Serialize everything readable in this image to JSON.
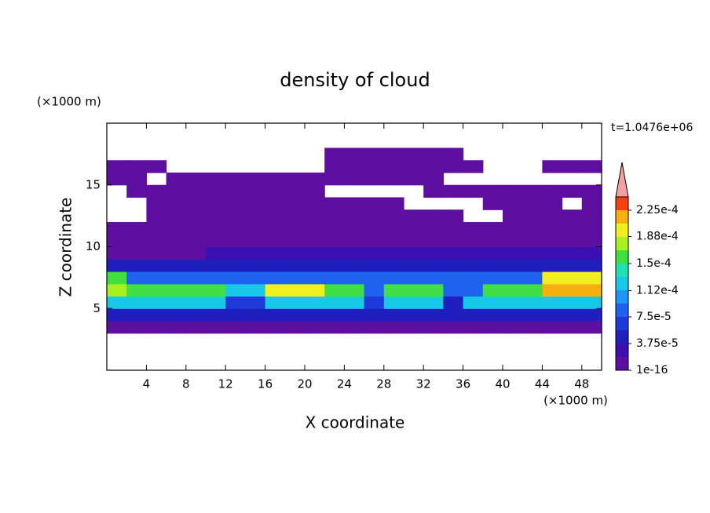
{
  "chart_data": {
    "type": "contour",
    "title": "density of cloud",
    "xlabel": "X coordinate",
    "ylabel": "Z coordinate",
    "x_unit": "(×1000 m)",
    "y_unit": "(×1000 m)",
    "time_label": "t=1.0476e+06",
    "xlim": [
      0,
      50
    ],
    "ylim": [
      0,
      20
    ],
    "xticks": [
      4,
      8,
      12,
      16,
      20,
      24,
      28,
      32,
      36,
      40,
      44,
      48
    ],
    "yticks": [
      5,
      10,
      15
    ],
    "x_edges": [
      0,
      2,
      4,
      6,
      8,
      10,
      12,
      14,
      16,
      18,
      20,
      22,
      24,
      26,
      28,
      30,
      32,
      34,
      36,
      38,
      40,
      42,
      44,
      46,
      48,
      50
    ],
    "y_edges": [
      3,
      4,
      5,
      6,
      7,
      8,
      9,
      10,
      11,
      12,
      13,
      14,
      15,
      16,
      17,
      18
    ],
    "z": [
      [
        1.5e-05,
        1.5e-05,
        1.5e-05,
        1.5e-05,
        1.5e-05,
        1.5e-05,
        1.5e-05,
        1.5e-05,
        1.5e-05,
        1.5e-05,
        1.5e-05,
        1.5e-05,
        1.5e-05,
        1.5e-05,
        1.5e-05,
        1.5e-05,
        1.5e-05,
        1.5e-05,
        1.5e-05,
        1.5e-05,
        1.5e-05,
        1.5e-05,
        1.5e-05,
        1.5e-05,
        1.5e-05
      ],
      [
        5e-05,
        5e-05,
        5e-05,
        5e-05,
        5e-05,
        5e-05,
        5e-05,
        5e-05,
        5e-05,
        5e-05,
        5e-05,
        5e-05,
        5e-05,
        5e-05,
        5e-05,
        5e-05,
        5e-05,
        5e-05,
        5e-05,
        5e-05,
        5e-05,
        5e-05,
        5e-05,
        5e-05,
        5e-05
      ],
      [
        0.00012,
        0.00012,
        0.00012,
        0.00012,
        0.00012,
        0.00012,
        6e-05,
        6e-05,
        0.00012,
        0.00012,
        0.00012,
        0.00012,
        0.00012,
        6e-05,
        0.00012,
        0.00012,
        0.00012,
        5e-05,
        0.00012,
        0.00012,
        0.00012,
        0.00012,
        0.00012,
        0.00012,
        0.00012
      ],
      [
        0.00018,
        0.00015,
        0.00015,
        0.00015,
        0.00015,
        0.00015,
        0.00013,
        0.00013,
        0.0002,
        0.0002,
        0.0002,
        0.00016,
        0.00016,
        9e-05,
        0.00016,
        0.00016,
        0.00016,
        9e-05,
        9e-05,
        0.00016,
        0.00016,
        0.00016,
        0.00022,
        0.00022,
        0.00022
      ],
      [
        0.00015,
        9e-05,
        9e-05,
        9e-05,
        9e-05,
        9e-05,
        9e-05,
        9e-05,
        9e-05,
        9e-05,
        9e-05,
        9e-05,
        9e-05,
        9e-05,
        9e-05,
        9e-05,
        9e-05,
        9e-05,
        9e-05,
        9e-05,
        9e-05,
        9e-05,
        0.00019,
        0.00019,
        0.00019
      ],
      [
        4e-05,
        4e-05,
        4e-05,
        4e-05,
        4e-05,
        4e-05,
        4e-05,
        4e-05,
        4e-05,
        4e-05,
        4e-05,
        4e-05,
        4e-05,
        4e-05,
        4e-05,
        4e-05,
        4e-05,
        4e-05,
        4e-05,
        4e-05,
        4e-05,
        4e-05,
        4e-05,
        4e-05,
        4e-05
      ],
      [
        1.5e-05,
        1.5e-05,
        1.5e-05,
        1.5e-05,
        1.5e-05,
        2.5e-05,
        2.5e-05,
        2.5e-05,
        2.5e-05,
        2.5e-05,
        2.5e-05,
        2.5e-05,
        2.5e-05,
        2.5e-05,
        2.5e-05,
        2.5e-05,
        2.5e-05,
        2.5e-05,
        2.5e-05,
        2.5e-05,
        2.5e-05,
        2.5e-05,
        2.5e-05,
        2.5e-05,
        2.5e-05
      ],
      [
        1.5e-05,
        1.5e-05,
        1.5e-05,
        1.5e-05,
        1.5e-05,
        1.5e-05,
        1.5e-05,
        1.5e-05,
        1.5e-05,
        1.5e-05,
        1.5e-05,
        1.5e-05,
        1.5e-05,
        1.5e-05,
        1.5e-05,
        1.5e-05,
        1.5e-05,
        1.5e-05,
        1.5e-05,
        1.5e-05,
        1.5e-05,
        1.5e-05,
        1.5e-05,
        1.5e-05,
        1.5e-05
      ],
      [
        1e-05,
        1e-05,
        1e-05,
        1e-05,
        1e-05,
        1e-05,
        1e-05,
        1e-05,
        1.5e-05,
        1.5e-05,
        1.5e-05,
        1.5e-05,
        1.5e-05,
        1.5e-05,
        1.5e-05,
        1e-05,
        1e-05,
        1e-05,
        1e-05,
        1e-05,
        1e-05,
        1e-05,
        1e-05,
        1e-05,
        1e-05
      ],
      [
        null,
        null,
        1e-05,
        1e-05,
        1e-05,
        1e-05,
        1e-05,
        1e-05,
        1e-05,
        1e-05,
        1e-05,
        1e-05,
        1e-05,
        1e-05,
        1e-05,
        1e-05,
        1e-05,
        1e-05,
        null,
        null,
        1e-05,
        1e-05,
        1e-05,
        1e-05,
        1e-05
      ],
      [
        null,
        null,
        5e-06,
        5e-06,
        5e-06,
        5e-06,
        5e-06,
        5e-06,
        5e-06,
        5e-06,
        5e-06,
        5e-06,
        5e-06,
        5e-06,
        5e-06,
        null,
        null,
        null,
        null,
        5e-06,
        5e-06,
        5e-06,
        5e-06,
        null,
        5e-06
      ],
      [
        null,
        5e-06,
        5e-06,
        5e-06,
        5e-06,
        5e-06,
        5e-06,
        5e-06,
        5e-06,
        5e-06,
        5e-06,
        null,
        null,
        null,
        null,
        null,
        5e-06,
        5e-06,
        5e-06,
        5e-06,
        5e-06,
        5e-06,
        5e-06,
        5e-06,
        5e-06
      ],
      [
        5e-06,
        5e-06,
        null,
        5e-06,
        5e-06,
        5e-06,
        5e-06,
        5e-06,
        5e-06,
        5e-06,
        5e-06,
        5e-06,
        5e-06,
        5e-06,
        5e-06,
        5e-06,
        5e-06,
        null,
        null,
        null,
        null,
        null,
        null,
        null,
        null
      ],
      [
        5e-06,
        5e-06,
        5e-06,
        null,
        null,
        null,
        null,
        null,
        null,
        null,
        null,
        5e-06,
        5e-06,
        5e-06,
        5e-06,
        5e-06,
        5e-06,
        5e-06,
        5e-06,
        null,
        null,
        null,
        5e-06,
        5e-06,
        5e-06
      ],
      [
        null,
        null,
        null,
        null,
        null,
        null,
        null,
        null,
        null,
        null,
        null,
        5e-06,
        5e-06,
        5e-06,
        5e-06,
        5e-06,
        5e-06,
        5e-06,
        null,
        null,
        null,
        null,
        null,
        null,
        null
      ]
    ],
    "levels": [
      1e-16,
      1.875e-05,
      3.75e-05,
      5.625e-05,
      7.5e-05,
      9.375e-05,
      0.0001125,
      0.00013125,
      0.00015,
      0.00016875,
      0.0001875,
      0.00020625,
      0.000225
    ],
    "colors": [
      "#5e0fa0",
      "#3b0fb0",
      "#1f1fbe",
      "#1f3ad8",
      "#1f62f0",
      "#1f96f5",
      "#18c8e8",
      "#20e0b0",
      "#40e040",
      "#a8f020",
      "#f0f020",
      "#f8b010",
      "#f84010"
    ],
    "over_color": "#f4a0a0",
    "clim": [
      1e-16,
      0.00024375
    ],
    "colorbar_ticks": [
      {
        "value": 1e-16,
        "label": "1e-16"
      },
      {
        "value": 3.75e-05,
        "label": "3.75e-5"
      },
      {
        "value": 7.5e-05,
        "label": "7.5e-5"
      },
      {
        "value": 0.000112,
        "label": "1.12e-4"
      },
      {
        "value": 0.00015,
        "label": "1.5e-4"
      },
      {
        "value": 0.000188,
        "label": "1.88e-4"
      },
      {
        "value": 0.000225,
        "label": "2.25e-4"
      }
    ]
  }
}
